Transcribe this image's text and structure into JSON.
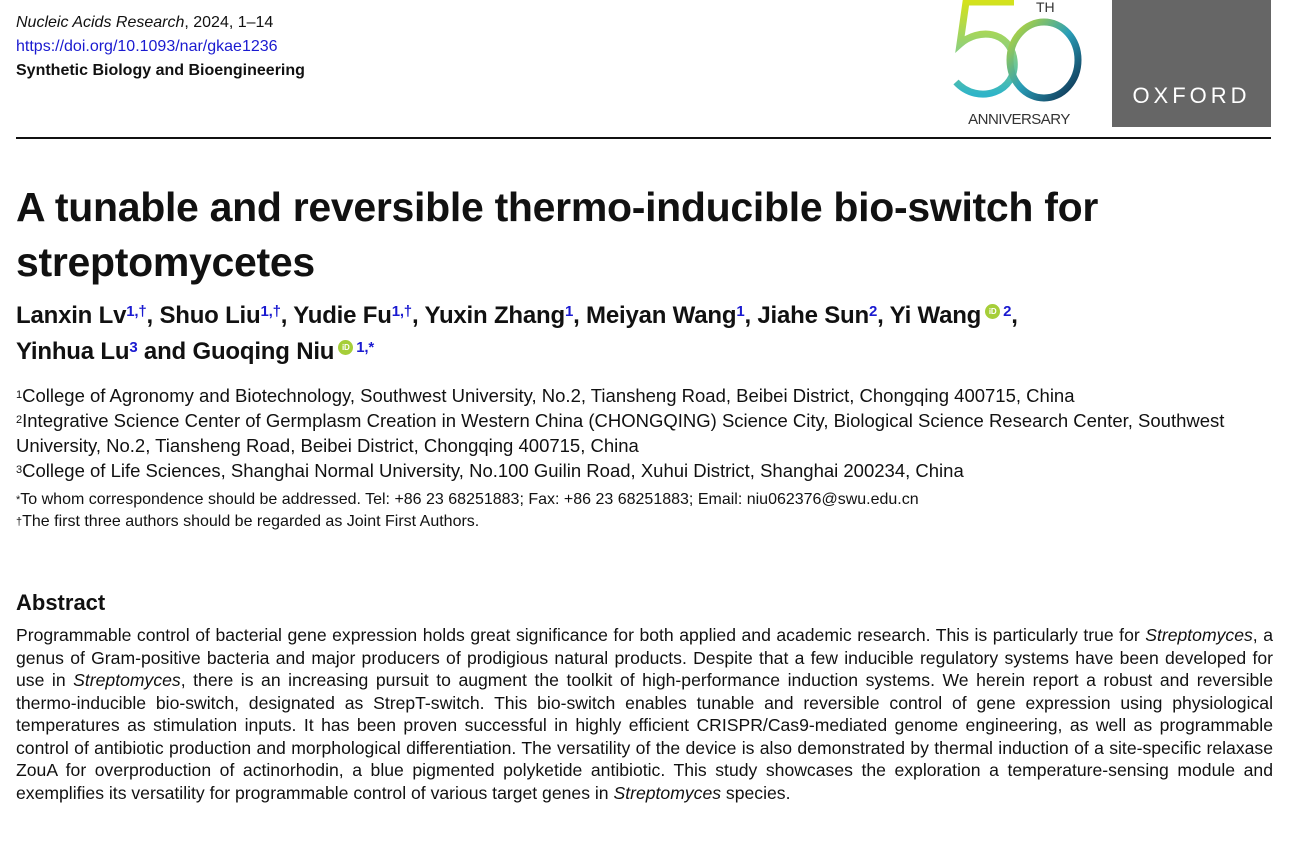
{
  "journal": {
    "name": "Nucleic Acids Research",
    "year_pages": ", 2024, 1–14",
    "doi": "https://doi.org/10.1093/nar/gkae1236",
    "section": "Synthetic Biology and Bioengineering"
  },
  "logos": {
    "anniversary_th": "TH",
    "anniversary_text": "ANNIVERSARY",
    "publisher": "OXFORD",
    "publisher_bg": "#666666"
  },
  "title": "A tunable and reversible thermo-inducible bio-switch for streptomycetes",
  "authors": [
    {
      "name": "Lanxin Lv",
      "sup": "1,†"
    },
    {
      "name": "Shuo Liu",
      "sup": "1,†"
    },
    {
      "name": "Yudie Fu",
      "sup": "1,†"
    },
    {
      "name": "Yuxin Zhang",
      "sup": "1"
    },
    {
      "name": "Meiyan Wang",
      "sup": "1"
    },
    {
      "name": "Jiahe Sun",
      "sup": "2"
    },
    {
      "name": "Yi Wang",
      "sup": "2",
      "orcid": true
    },
    {
      "name": "Yinhua Lu",
      "sup": "3"
    },
    {
      "name": "Guoqing Niu",
      "sup": "1,*",
      "orcid": true
    }
  ],
  "authors_sep": {
    "comma": ", ",
    "and": " and "
  },
  "affiliations": [
    {
      "n": "1",
      "text": "College of Agronomy and Biotechnology, Southwest University, No.2, Tiansheng Road, Beibei District, Chongqing 400715, China"
    },
    {
      "n": "2",
      "text": "Integrative Science Center of Germplasm Creation in Western China (CHONGQING) Science City, Biological Science Research Center, Southwest University, No.2, Tiansheng Road, Beibei District, Chongqing 400715, China"
    },
    {
      "n": "3",
      "text": "College of Life Sciences, Shanghai Normal University, No.100 Guilin Road, Xuhui District, Shanghai 200234, China"
    }
  ],
  "notes": [
    {
      "mark": "*",
      "text": "To whom correspondence should be addressed. Tel: +86 23 68251883; Fax: +86 23 68251883; Email: niu062376@swu.edu.cn"
    },
    {
      "mark": "†",
      "text": "The first three authors should be regarded as Joint First Authors."
    }
  ],
  "abstract": {
    "heading": "Abstract",
    "segments": [
      "Programmable control of bacterial gene expression holds great significance for both applied and academic research. This is particularly true for ",
      "Streptomyces",
      ", a genus of Gram-positive bacteria and major producers of prodigious natural products. Despite that a few inducible regulatory systems have been developed for use in ",
      "Streptomyces",
      ", there is an increasing pursuit to augment the toolkit of high-performance induction systems. We herein report a robust and reversible thermo-inducible bio-switch, designated as StrepT-switch. This bio-switch enables tunable and reversible control of gene expression using physiological temperatures as stimulation inputs. It has been proven successful in highly efficient CRISPR/Cas9-mediated genome engineering, as well as programmable control of antibiotic production and morphological differentiation. The versatility of the device is also demonstrated by thermal induction of a site-specific relaxase ZouA for overproduction of actinorhodin, a blue pigmented polyketide antibiotic. This study showcases the exploration a temperature-sensing module and exemplifies its versatility for programmable control of various target genes in ",
      "Streptomyces",
      " species."
    ]
  }
}
